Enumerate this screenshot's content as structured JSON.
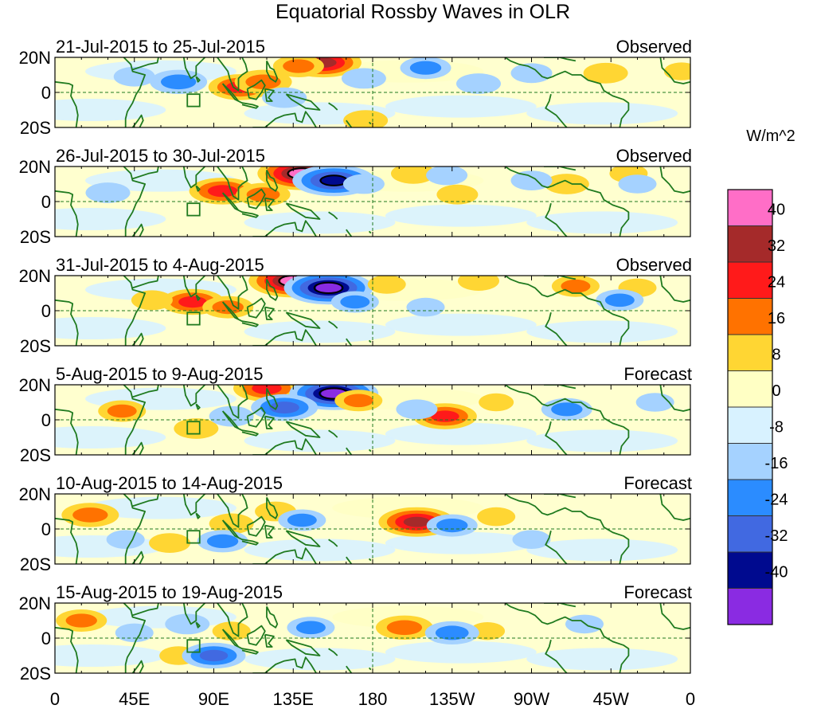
{
  "chart_data": {
    "type": "heatmap",
    "title": "Equatorial Rossby Waves in OLR",
    "units": "W/m^2",
    "variable": "OLR anomaly",
    "x_domain_deg_east": [
      0,
      360
    ],
    "y_domain_deg": [
      -20,
      20
    ],
    "x_ticks": [
      {
        "lon": 0,
        "label": "0"
      },
      {
        "lon": 45,
        "label": "45E"
      },
      {
        "lon": 90,
        "label": "90E"
      },
      {
        "lon": 135,
        "label": "135E"
      },
      {
        "lon": 180,
        "label": "180"
      },
      {
        "lon": 225,
        "label": "135W"
      },
      {
        "lon": 270,
        "label": "90W"
      },
      {
        "lon": 315,
        "label": "45W"
      },
      {
        "lon": 360,
        "label": "0"
      }
    ],
    "y_ticks": [
      {
        "lat": 20,
        "label": "20N"
      },
      {
        "lat": 0,
        "label": "0"
      },
      {
        "lat": -20,
        "label": "20S"
      }
    ],
    "colorbar": {
      "label": "W/m^2",
      "tick_labels": [
        "40",
        "32",
        "24",
        "16",
        "8",
        "0",
        "-8",
        "-16",
        "-24",
        "-32",
        "-40"
      ],
      "colors": [
        "#ff6ec7",
        "#a52a2a",
        "#ff1a1a",
        "#ff7200",
        "#ffd633",
        "#ffffc4",
        "#d8f2ff",
        "#a5d2ff",
        "#2b8cff",
        "#4169e1",
        "#000a8f",
        "#8a2be2"
      ]
    },
    "panels": [
      {
        "period": "21-Jul-2015 to 25-Jul-2015",
        "kind": "Observed",
        "anomalies": [
          {
            "lon": 105,
            "lat": 3,
            "value": 26
          },
          {
            "lon": 118,
            "lat": 6,
            "value": 22
          },
          {
            "lon": 152,
            "lat": 17,
            "value": 34
          },
          {
            "lon": 138,
            "lat": 15,
            "value": 18
          },
          {
            "lon": 176,
            "lat": -16,
            "value": 14
          },
          {
            "lon": 312,
            "lat": 11,
            "value": 14
          },
          {
            "lon": 355,
            "lat": 12,
            "value": 8
          },
          {
            "lon": 70,
            "lat": 6,
            "value": -22
          },
          {
            "lon": 45,
            "lat": 9,
            "value": -12
          },
          {
            "lon": 130,
            "lat": -3,
            "value": -14
          },
          {
            "lon": 175,
            "lat": 8,
            "value": -14
          },
          {
            "lon": 210,
            "lat": 14,
            "value": -18
          },
          {
            "lon": 240,
            "lat": 5,
            "value": -14
          },
          {
            "lon": 270,
            "lat": 11,
            "value": -12
          }
        ]
      },
      {
        "period": "26-Jul-2015 to 30-Jul-2015",
        "kind": "Observed",
        "anomalies": [
          {
            "lon": 95,
            "lat": 6,
            "value": 28
          },
          {
            "lon": 118,
            "lat": 4,
            "value": 20
          },
          {
            "lon": 140,
            "lat": 16,
            "value": 42
          },
          {
            "lon": 158,
            "lat": 12,
            "value": -38
          },
          {
            "lon": 203,
            "lat": 16,
            "value": 14
          },
          {
            "lon": 228,
            "lat": 4,
            "value": 12
          },
          {
            "lon": 290,
            "lat": 10,
            "value": 14
          },
          {
            "lon": 325,
            "lat": 16,
            "value": 10
          },
          {
            "lon": 30,
            "lat": 5,
            "value": -14
          },
          {
            "lon": 175,
            "lat": 10,
            "value": -12
          },
          {
            "lon": 222,
            "lat": 15,
            "value": -12
          },
          {
            "lon": 270,
            "lat": 12,
            "value": -12
          },
          {
            "lon": 330,
            "lat": 10,
            "value": -10
          }
        ]
      },
      {
        "period": "31-Jul-2015 to 4-Aug-2015",
        "kind": "Observed",
        "anomalies": [
          {
            "lon": 78,
            "lat": 5,
            "value": 26
          },
          {
            "lon": 98,
            "lat": 2,
            "value": 18
          },
          {
            "lon": 135,
            "lat": 17,
            "value": 42
          },
          {
            "lon": 155,
            "lat": 13,
            "value": -42
          },
          {
            "lon": 188,
            "lat": 15,
            "value": 10
          },
          {
            "lon": 240,
            "lat": 17,
            "value": 12
          },
          {
            "lon": 295,
            "lat": 14,
            "value": 16
          },
          {
            "lon": 330,
            "lat": 13,
            "value": 10
          },
          {
            "lon": 55,
            "lat": 6,
            "value": 12
          },
          {
            "lon": 170,
            "lat": 5,
            "value": -16
          },
          {
            "lon": 210,
            "lat": 2,
            "value": -10
          },
          {
            "lon": 320,
            "lat": 6,
            "value": -16
          }
        ]
      },
      {
        "period": "5-Aug-2015 to 9-Aug-2015",
        "kind": "Forecast",
        "anomalies": [
          {
            "lon": 38,
            "lat": 5,
            "value": 16
          },
          {
            "lon": 80,
            "lat": -5,
            "value": 14
          },
          {
            "lon": 120,
            "lat": 18,
            "value": 28
          },
          {
            "lon": 158,
            "lat": 15,
            "value": -42
          },
          {
            "lon": 130,
            "lat": 7,
            "value": -28
          },
          {
            "lon": 172,
            "lat": 11,
            "value": 16
          },
          {
            "lon": 221,
            "lat": 2,
            "value": 26
          },
          {
            "lon": 250,
            "lat": 10,
            "value": 8
          },
          {
            "lon": 100,
            "lat": 2,
            "value": -14
          },
          {
            "lon": 205,
            "lat": 6,
            "value": -12
          },
          {
            "lon": 290,
            "lat": 6,
            "value": -18
          },
          {
            "lon": 340,
            "lat": 10,
            "value": -10
          }
        ]
      },
      {
        "period": "10-Aug-2015 to 14-Aug-2015",
        "kind": "Forecast",
        "anomalies": [
          {
            "lon": 20,
            "lat": 8,
            "value": 22
          },
          {
            "lon": 100,
            "lat": 3,
            "value": 14
          },
          {
            "lon": 65,
            "lat": -8,
            "value": 12
          },
          {
            "lon": 125,
            "lat": 10,
            "value": 12
          },
          {
            "lon": 205,
            "lat": 4,
            "value": 34
          },
          {
            "lon": 250,
            "lat": 7,
            "value": 10
          },
          {
            "lon": 95,
            "lat": -7,
            "value": -18
          },
          {
            "lon": 140,
            "lat": 5,
            "value": -16
          },
          {
            "lon": 225,
            "lat": 2,
            "value": -18
          },
          {
            "lon": 270,
            "lat": -6,
            "value": -10
          },
          {
            "lon": 40,
            "lat": -6,
            "value": -10
          }
        ]
      },
      {
        "period": "15-Aug-2015 to 19-Aug-2015",
        "kind": "Forecast",
        "anomalies": [
          {
            "lon": 15,
            "lat": 10,
            "value": 18
          },
          {
            "lon": 70,
            "lat": -10,
            "value": 10
          },
          {
            "lon": 100,
            "lat": 4,
            "value": 10
          },
          {
            "lon": 198,
            "lat": 6,
            "value": 22
          },
          {
            "lon": 245,
            "lat": 4,
            "value": 8
          },
          {
            "lon": 90,
            "lat": -10,
            "value": -26
          },
          {
            "lon": 75,
            "lat": 8,
            "value": -14
          },
          {
            "lon": 145,
            "lat": 6,
            "value": -16
          },
          {
            "lon": 225,
            "lat": 3,
            "value": -20
          },
          {
            "lon": 300,
            "lat": 8,
            "value": -10
          },
          {
            "lon": 45,
            "lat": 3,
            "value": -10
          }
        ]
      }
    ]
  }
}
